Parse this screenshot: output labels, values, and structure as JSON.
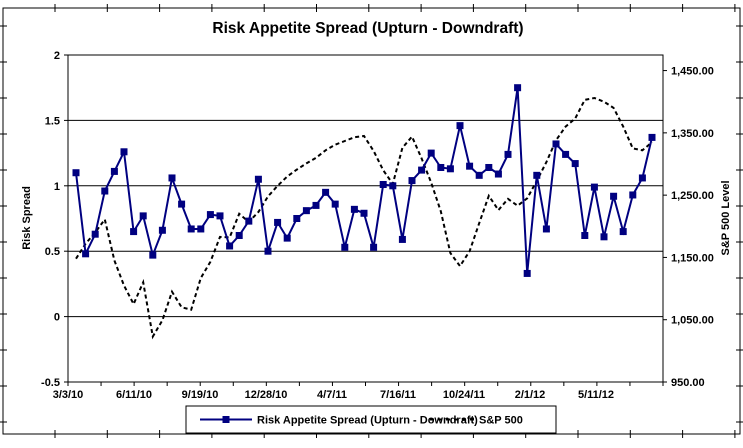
{
  "chart_data": {
    "type": "line",
    "title": "Risk Appetite Spread (Upturn - Downdraft)",
    "legend_position": "bottom",
    "grid": "horizontal",
    "x_tick_labels": [
      "3/3/10",
      "6/11/10",
      "9/19/10",
      "12/28/10",
      "4/7/11",
      "7/16/11",
      "10/24/11",
      "2/1/12",
      "5/11/12"
    ],
    "left_axis": {
      "label": "Risk Spread",
      "min": -0.5,
      "max": 2,
      "tick_values": [
        2,
        1.5,
        1,
        0.5,
        0,
        -0.5
      ],
      "tick_labels": [
        "2",
        "1.5",
        "1",
        "0.5",
        "0",
        "-0.5"
      ]
    },
    "right_axis": {
      "label": "S&P 500 Level",
      "min": 950,
      "max": 1475,
      "tick_values": [
        1450,
        1350,
        1250,
        1150,
        1050,
        950
      ],
      "tick_labels": [
        "1,450.00",
        "1,350.00",
        "1,250.00",
        "1,150.00",
        "1,050.00",
        "950.00"
      ]
    },
    "series": [
      {
        "name": "S&P 500",
        "axis": "right",
        "style": "dashed",
        "color": "#000000",
        "marker": "none",
        "values": [
          1148,
          1172,
          1190,
          1211,
          1145,
          1105,
          1075,
          1110,
          1023,
          1049,
          1095,
          1070,
          1066,
          1117,
          1143,
          1183,
          1182,
          1220,
          1207,
          1223,
          1248,
          1265,
          1280,
          1291,
          1301,
          1310,
          1322,
          1331,
          1337,
          1343,
          1345,
          1321,
          1290,
          1268,
          1326,
          1344,
          1309,
          1270,
          1224,
          1157,
          1136,
          1160,
          1205,
          1249,
          1226,
          1244,
          1233,
          1245,
          1273,
          1303,
          1338,
          1360,
          1373,
          1403,
          1406,
          1400,
          1390,
          1360,
          1325,
          1322,
          1335
        ]
      },
      {
        "name": "Risk Appetite Spread (Upturn - Downdraft)",
        "axis": "left",
        "style": "solid",
        "color": "#000080",
        "marker": "square",
        "values": [
          1.1,
          0.48,
          0.63,
          0.96,
          1.11,
          1.26,
          0.65,
          0.77,
          0.47,
          0.66,
          1.06,
          0.86,
          0.67,
          0.67,
          0.78,
          0.77,
          0.54,
          0.62,
          0.73,
          1.05,
          0.5,
          0.72,
          0.6,
          0.75,
          0.81,
          0.85,
          0.95,
          0.86,
          0.53,
          0.82,
          0.79,
          0.53,
          1.01,
          1.0,
          0.59,
          1.04,
          1.12,
          1.25,
          1.14,
          1.13,
          1.46,
          1.15,
          1.08,
          1.14,
          1.09,
          1.24,
          1.75,
          0.33,
          1.08,
          0.67,
          1.32,
          1.24,
          1.17,
          0.62,
          0.99,
          0.61,
          0.92,
          0.65,
          0.93,
          1.06,
          1.37
        ]
      }
    ]
  }
}
